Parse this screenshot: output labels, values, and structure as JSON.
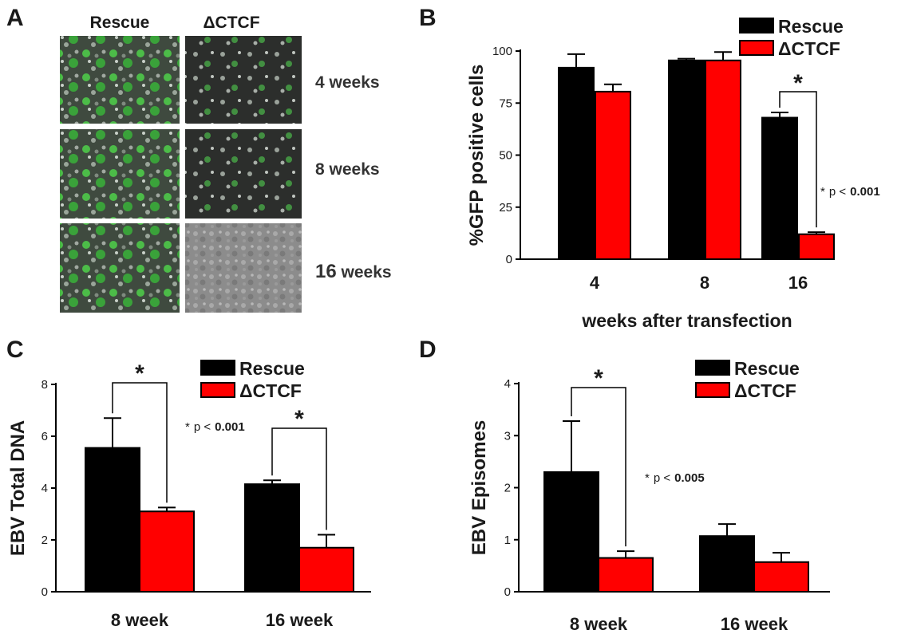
{
  "panels": {
    "a": {
      "letter": "A",
      "columns": [
        "Rescue",
        "ΔCTCF"
      ],
      "rows": [
        {
          "label_num": "4",
          "label_unit": "weeks"
        },
        {
          "label_num": "8",
          "label_unit": "weeks"
        },
        {
          "label_num": "16",
          "label_unit": "weeks"
        }
      ]
    },
    "b": {
      "letter": "B"
    },
    "c": {
      "letter": "C"
    },
    "d": {
      "letter": "D"
    }
  },
  "colors": {
    "rescue": "#000000",
    "dctcf": "#ff0000"
  },
  "chart_data": [
    {
      "id": "B",
      "type": "bar",
      "categories": [
        "4",
        "8",
        "16"
      ],
      "series": [
        {
          "name": "Rescue",
          "color": "#000000",
          "values": [
            92,
            95.5,
            68
          ],
          "errors": [
            6.5,
            0.8,
            2.5
          ]
        },
        {
          "name": "ΔCTCF",
          "color": "#ff0000",
          "values": [
            80.5,
            95.5,
            12
          ],
          "errors": [
            3.5,
            4,
            1
          ]
        }
      ],
      "ylabel": "%GFP positive cells",
      "xlabel": "weeks after transfection",
      "ylim": [
        0,
        100
      ],
      "yticks": [
        0,
        25,
        50,
        75,
        100
      ],
      "legend": "top-right",
      "significance": [
        {
          "category": 2,
          "label": "*"
        }
      ],
      "p_note": {
        "star": "*",
        "text": "p <",
        "value": "0.001"
      }
    },
    {
      "id": "C",
      "type": "bar",
      "categories": [
        "8 week",
        "16 week"
      ],
      "series": [
        {
          "name": "Rescue",
          "color": "#000000",
          "values": [
            5.55,
            4.15
          ],
          "errors": [
            1.15,
            0.15
          ]
        },
        {
          "name": "ΔCTCF",
          "color": "#ff0000",
          "values": [
            3.1,
            1.7
          ],
          "errors": [
            0.15,
            0.5
          ]
        }
      ],
      "ylabel": "EBV Total DNA",
      "xlabel": "",
      "ylim": [
        0,
        8
      ],
      "yticks": [
        0,
        2,
        4,
        6,
        8
      ],
      "legend": "top-right",
      "significance": [
        {
          "category": 0,
          "label": "*"
        },
        {
          "category": 1,
          "label": "*"
        }
      ],
      "p_note": {
        "star": "*",
        "text": "p <",
        "value": "0.001"
      }
    },
    {
      "id": "D",
      "type": "bar",
      "categories": [
        "8 week",
        "16 week"
      ],
      "series": [
        {
          "name": "Rescue",
          "color": "#000000",
          "values": [
            2.3,
            1.07
          ],
          "errors": [
            0.98,
            0.23
          ]
        },
        {
          "name": "ΔCTCF",
          "color": "#ff0000",
          "values": [
            0.65,
            0.57
          ],
          "errors": [
            0.13,
            0.18
          ]
        }
      ],
      "ylabel": "EBV Episomes",
      "xlabel": "",
      "ylim": [
        0,
        4
      ],
      "yticks": [
        0,
        1,
        2,
        3,
        4
      ],
      "legend": "top-right",
      "significance": [
        {
          "category": 0,
          "label": "*"
        }
      ],
      "p_note": {
        "star": "*",
        "text": "p <",
        "value": "0.005"
      }
    }
  ]
}
